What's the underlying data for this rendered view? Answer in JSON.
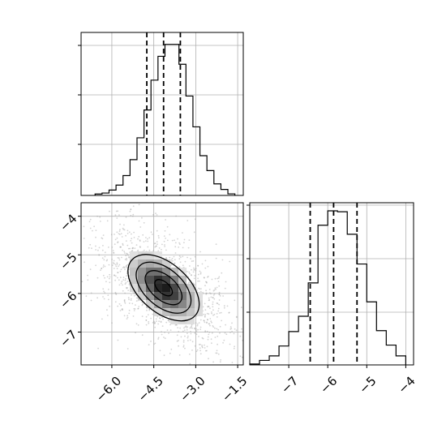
{
  "chart_data": [
    {
      "type": "histogram",
      "panel": "top-left",
      "parameter_index": 0,
      "bins": [
        -6.6,
        -6.35,
        -6.1,
        -5.85,
        -5.6,
        -5.35,
        -5.1,
        -4.85,
        -4.6,
        -4.35,
        -4.1,
        -3.85,
        -3.6,
        -3.35,
        -3.1,
        -2.85,
        -2.6,
        -2.35,
        -2.1,
        -1.85,
        -1.6
      ],
      "counts": [
        0.007,
        0.012,
        0.027,
        0.052,
        0.1,
        0.18,
        0.29,
        0.43,
        0.58,
        0.7,
        0.76,
        0.76,
        0.66,
        0.5,
        0.345,
        0.2,
        0.125,
        0.058,
        0.03,
        0.008
      ],
      "quantile_lines": [
        -4.75,
        -4.15,
        -3.55
      ],
      "xlim": [
        -7.1,
        -1.3
      ],
      "ylim": [
        0,
        0.82
      ],
      "grid": true
    },
    {
      "type": "histogram",
      "panel": "bottom-right",
      "parameter_index": 1,
      "bins": [
        -8.0,
        -7.75,
        -7.5,
        -7.25,
        -7.0,
        -6.75,
        -6.5,
        -6.25,
        -6.0,
        -5.75,
        -5.5,
        -5.25,
        -5.0,
        -4.75,
        -4.5,
        -4.25,
        -4.0
      ],
      "counts": [
        0.005,
        0.025,
        0.05,
        0.105,
        0.185,
        0.27,
        0.455,
        0.775,
        0.855,
        0.85,
        0.725,
        0.56,
        0.35,
        0.19,
        0.11,
        0.05
      ],
      "quantile_lines": [
        -6.45,
        -5.85,
        -5.25
      ],
      "xlim": [
        -8.0,
        -3.8
      ],
      "ylim": [
        0,
        0.9
      ],
      "xticks": [
        "−7",
        "−6",
        "−5",
        "−4"
      ],
      "xtick_values": [
        -7,
        -6,
        -5,
        -4
      ],
      "grid": true
    },
    {
      "type": "heatmap",
      "panel": "bottom-left",
      "x_parameter_index": 0,
      "y_parameter_index": 1,
      "x_range": [
        -7.1,
        -1.3
      ],
      "y_range": [
        -7.85,
        -3.65
      ],
      "center": [
        -4.15,
        -5.85
      ],
      "correlation": "negative",
      "contour_levels": 4,
      "xticks": [
        "−6.0",
        "−4.5",
        "−3.0",
        "−1.5"
      ],
      "xtick_values": [
        -6.0,
        -4.5,
        -3.0,
        -1.5
      ],
      "yticks": [
        "−4",
        "−5",
        "−6",
        "−7"
      ],
      "ytick_values": [
        -4,
        -5,
        -6,
        -7
      ],
      "grid": true
    }
  ],
  "colors": {
    "line": "#000000",
    "grid": "#b0b0b0",
    "scatter": "#a0a0a0"
  }
}
